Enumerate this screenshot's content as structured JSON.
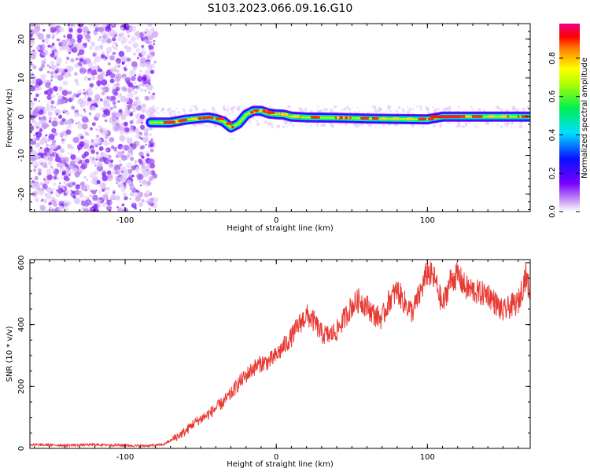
{
  "figure": {
    "title": "S103.2023.066.09.16.G10"
  },
  "chart_data": [
    {
      "type": "heatmap",
      "title": "S103.2023.066.09.16.G10",
      "xlabel": "Height of straight line (km)",
      "ylabel": "Frequency (Hz)",
      "xlim": [
        -163,
        168
      ],
      "ylim": [
        -24.5,
        24
      ],
      "x_ticks": [
        -100,
        0,
        100
      ],
      "y_ticks": [
        -20,
        -10,
        0,
        10,
        20
      ],
      "noise_region_x": [
        -163,
        -83
      ],
      "signal_track": {
        "x": [
          -83,
          -70,
          -60,
          -50,
          -45,
          -40,
          -35,
          -30,
          -25,
          -20,
          -15,
          -10,
          -5,
          0,
          5,
          10,
          20,
          40,
          60,
          80,
          100,
          110,
          130,
          150,
          168
        ],
        "freq": [
          -1.5,
          -1.5,
          -0.8,
          -0.4,
          -0.2,
          -0.6,
          -1.2,
          -2.8,
          -1.8,
          0.5,
          1.5,
          1.5,
          0.8,
          0.6,
          0.5,
          0,
          -0.2,
          -0.3,
          -0.5,
          -0.6,
          -0.7,
          0,
          0,
          0,
          0
        ]
      },
      "colorbar": {
        "label": "Normalized spectral amplitude",
        "range": [
          0,
          0.98
        ],
        "ticks": [
          0.0,
          0.2,
          0.4,
          0.6,
          0.8
        ],
        "tick_labels": [
          "0.0",
          "0.2",
          "0.4",
          "0.6",
          "0.8"
        ]
      }
    },
    {
      "type": "line",
      "xlabel": "Height of straight line (km)",
      "ylabel": "SNR (10 * v/v)",
      "xlim": [
        -163,
        168
      ],
      "ylim": [
        0,
        610
      ],
      "x_ticks": [
        -100,
        0,
        100
      ],
      "y_ticks": [
        0,
        200,
        400,
        600
      ],
      "color": "#e83a34",
      "series": [
        {
          "x": [
            -163,
            -140,
            -120,
            -100,
            -90,
            -80,
            -75,
            -70,
            -65,
            -60,
            -55,
            -50,
            -45,
            -40,
            -35,
            -30,
            -25,
            -20,
            -15,
            -10,
            -5,
            0,
            5,
            10,
            15,
            20,
            25,
            30,
            35,
            40,
            45,
            50,
            55,
            60,
            65,
            70,
            75,
            80,
            85,
            90,
            95,
            100,
            105,
            110,
            115,
            120,
            125,
            130,
            135,
            140,
            145,
            150,
            155,
            160,
            165,
            168
          ],
          "values": [
            12,
            10,
            12,
            10,
            8,
            10,
            12,
            25,
            40,
            55,
            80,
            95,
            110,
            130,
            150,
            175,
            210,
            235,
            260,
            275,
            280,
            300,
            330,
            360,
            400,
            430,
            410,
            370,
            365,
            380,
            420,
            460,
            480,
            460,
            430,
            420,
            480,
            510,
            470,
            440,
            500,
            570,
            545,
            460,
            540,
            560,
            520,
            510,
            500,
            500,
            470,
            440,
            460,
            470,
            560,
            500
          ]
        }
      ]
    }
  ]
}
